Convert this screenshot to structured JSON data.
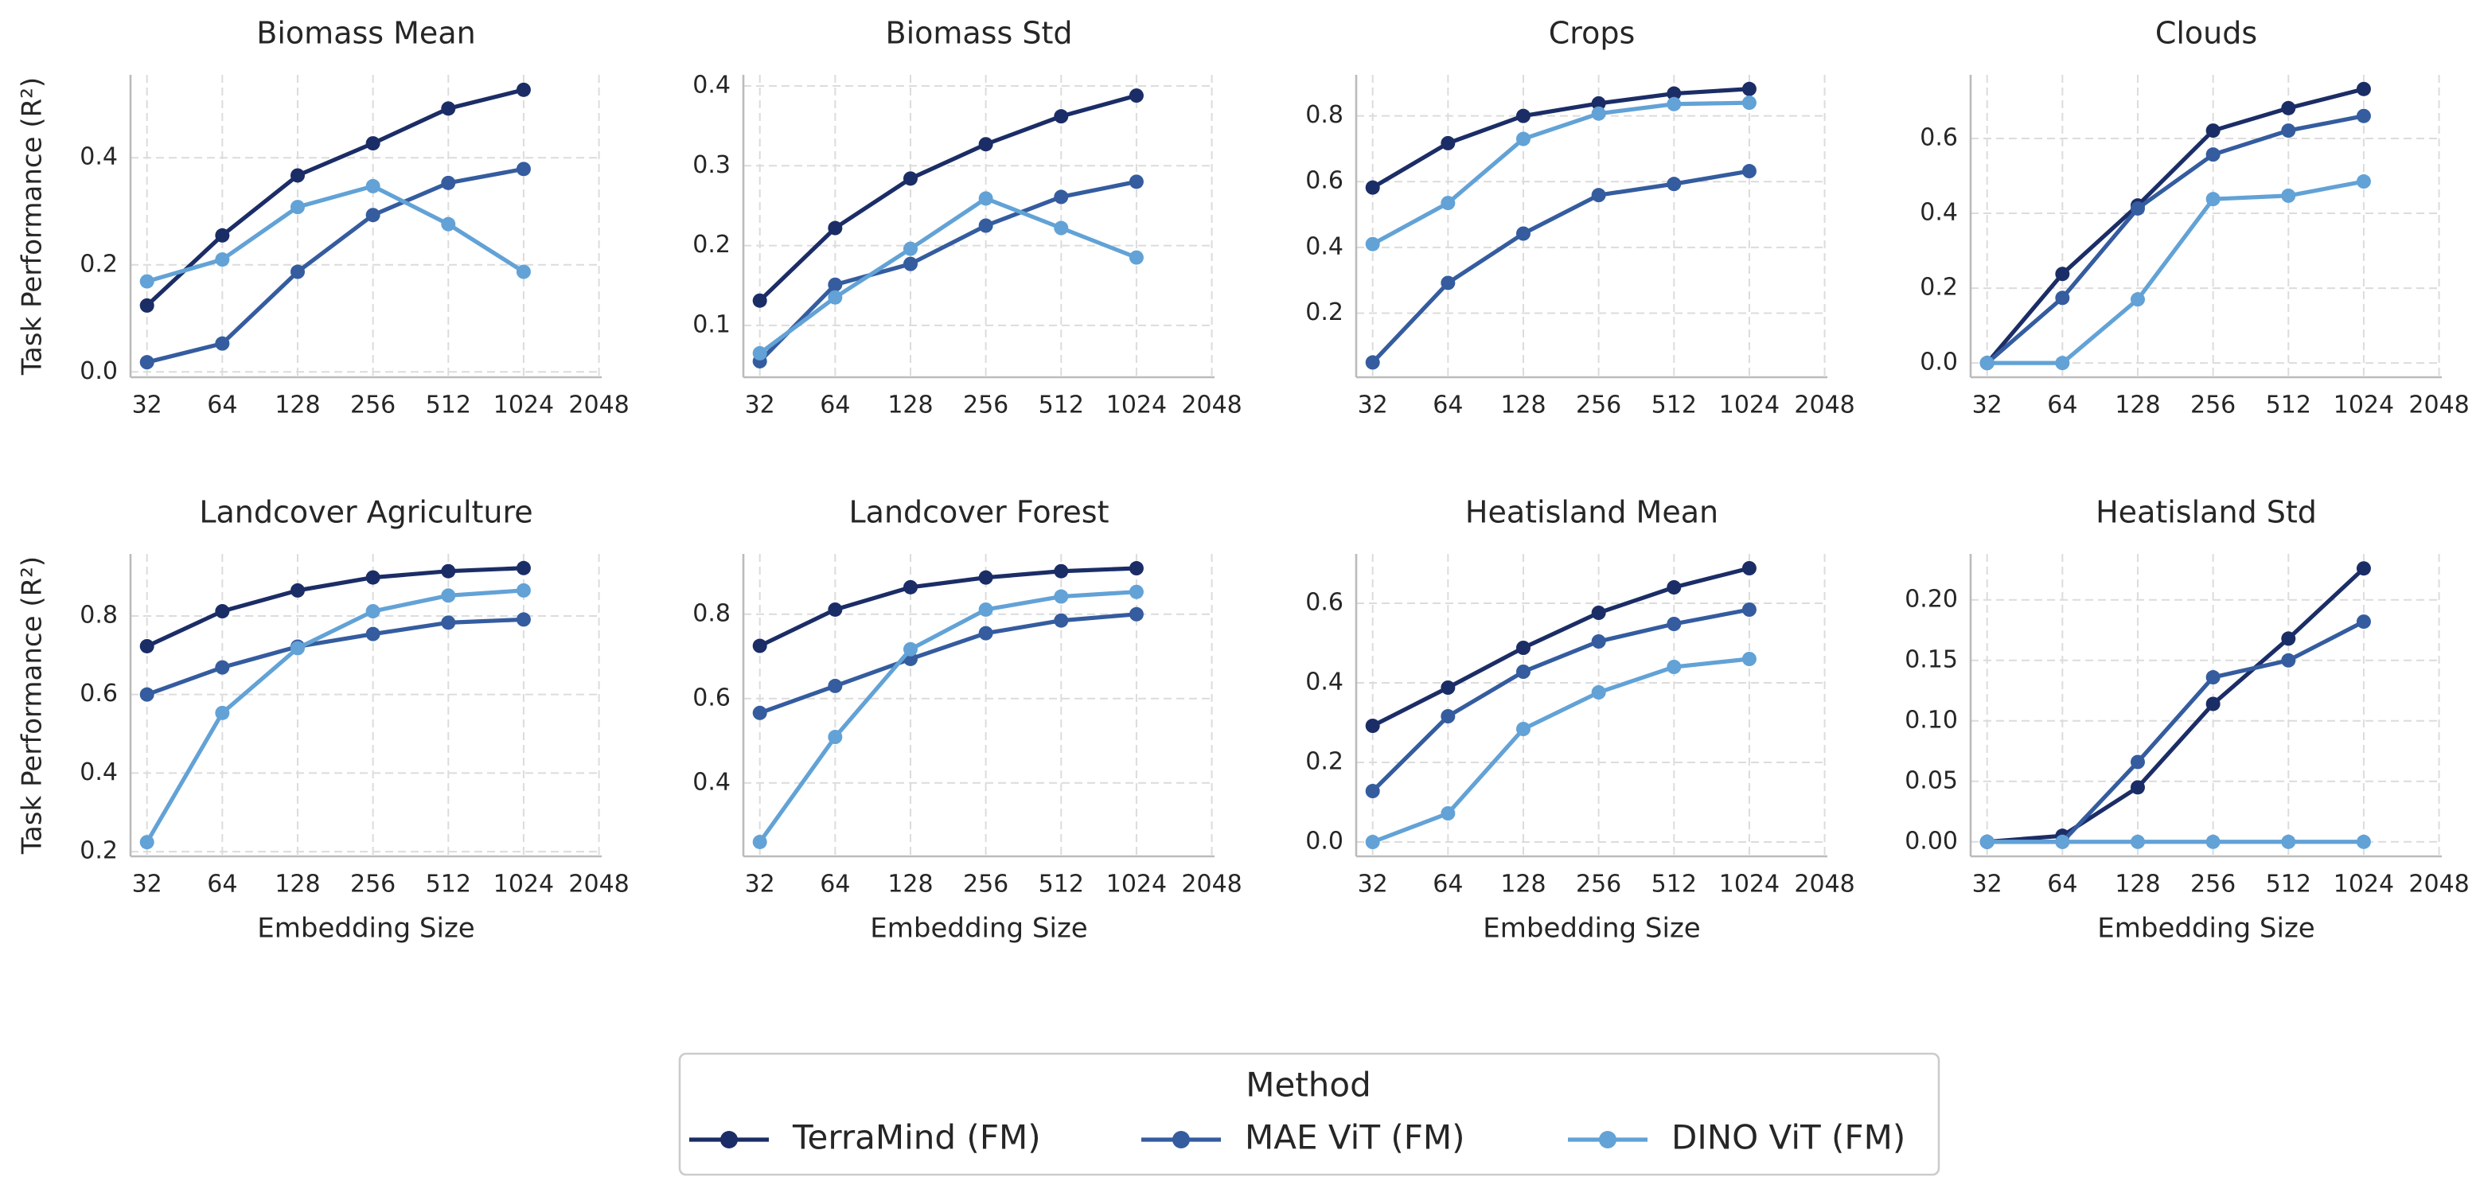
{
  "chart_data": [
    {
      "type": "line",
      "title": "Biomass Mean",
      "ylabel": "Task Performance (R²)",
      "x": [
        32,
        64,
        128,
        256,
        512,
        1024
      ],
      "xlim": [
        27.5,
        2100
      ],
      "xticks": [
        32,
        64,
        128,
        256,
        512,
        1024,
        2048
      ],
      "xscale": "log2",
      "ylim": [
        -0.01,
        0.555
      ],
      "yticks": [
        {
          "value": 0,
          "label": "0.0"
        },
        0.2,
        0.4
      ],
      "grid": true,
      "series": [
        {
          "name": "TerraMind (FM)",
          "color": "#1b2d66",
          "values": [
            0.124,
            0.255,
            0.367,
            0.427,
            0.492,
            0.527
          ]
        },
        {
          "name": "MAE ViT (FM)",
          "color": "#345c9f",
          "values": [
            0.018,
            0.053,
            0.187,
            0.293,
            0.353,
            0.379
          ]
        },
        {
          "name": "DINO ViT (FM)",
          "color": "#62a2d6",
          "values": [
            0.169,
            0.21,
            0.308,
            0.347,
            0.276,
            0.187
          ]
        }
      ]
    },
    {
      "type": "line",
      "title": "Biomass Std",
      "x": [
        32,
        64,
        128,
        256,
        512,
        1024
      ],
      "xlim": [
        27.5,
        2100
      ],
      "xticks": [
        32,
        64,
        128,
        256,
        512,
        1024,
        2048
      ],
      "xscale": "log2",
      "ylim": [
        0.035,
        0.414
      ],
      "yticks": [
        0.1,
        0.2,
        0.3,
        0.4
      ],
      "grid": true,
      "series": [
        {
          "name": "TerraMind (FM)",
          "color": "#1b2d66",
          "values": [
            0.131,
            0.222,
            0.284,
            0.327,
            0.362,
            0.388
          ]
        },
        {
          "name": "MAE ViT (FM)",
          "color": "#345c9f",
          "values": [
            0.055,
            0.151,
            0.177,
            0.225,
            0.261,
            0.28
          ]
        },
        {
          "name": "DINO ViT (FM)",
          "color": "#62a2d6",
          "values": [
            0.065,
            0.135,
            0.196,
            0.259,
            0.222,
            0.185
          ]
        }
      ]
    },
    {
      "type": "line",
      "title": "Crops",
      "x": [
        32,
        64,
        128,
        256,
        512,
        1024
      ],
      "xlim": [
        27.5,
        2100
      ],
      "xticks": [
        32,
        64,
        128,
        256,
        512,
        1024,
        2048
      ],
      "xscale": "log2",
      "ylim": [
        0.005,
        0.925
      ],
      "yticks": [
        0.2,
        0.4,
        0.6,
        0.8
      ],
      "grid": true,
      "series": [
        {
          "name": "TerraMind (FM)",
          "color": "#1b2d66",
          "values": [
            0.582,
            0.717,
            0.8,
            0.838,
            0.868,
            0.882
          ]
        },
        {
          "name": "MAE ViT (FM)",
          "color": "#345c9f",
          "values": [
            0.05,
            0.292,
            0.442,
            0.559,
            0.593,
            0.632
          ]
        },
        {
          "name": "DINO ViT (FM)",
          "color": "#62a2d6",
          "values": [
            0.41,
            0.535,
            0.73,
            0.807,
            0.836,
            0.84
          ]
        }
      ]
    },
    {
      "type": "line",
      "title": "Clouds",
      "x": [
        32,
        64,
        128,
        256,
        512,
        1024
      ],
      "xlim": [
        27.5,
        2100
      ],
      "xticks": [
        32,
        64,
        128,
        256,
        512,
        1024,
        2048
      ],
      "xscale": "log2",
      "ylim": [
        -0.038,
        0.77
      ],
      "yticks": [
        {
          "value": 0,
          "label": "0.0"
        },
        0.2,
        0.4,
        0.6
      ],
      "grid": true,
      "series": [
        {
          "name": "TerraMind (FM)",
          "color": "#1b2d66",
          "values": [
            0,
            0.238,
            0.421,
            0.621,
            0.681,
            0.732
          ]
        },
        {
          "name": "MAE ViT (FM)",
          "color": "#345c9f",
          "values": [
            0,
            0.174,
            0.413,
            0.557,
            0.621,
            0.66
          ]
        },
        {
          "name": "DINO ViT (FM)",
          "color": "#62a2d6",
          "values": [
            0,
            0,
            0.17,
            0.438,
            0.447,
            0.485
          ]
        }
      ]
    },
    {
      "type": "line",
      "title": "Landcover Agriculture",
      "ylabel": "Task Performance (R²)",
      "xlabel": "Embedding Size",
      "x": [
        32,
        64,
        128,
        256,
        512,
        1024
      ],
      "xlim": [
        27.5,
        2100
      ],
      "xticks": [
        32,
        64,
        128,
        256,
        512,
        1024,
        2048
      ],
      "xscale": "log2",
      "ylim": [
        0.188,
        0.958
      ],
      "yticks": [
        0.2,
        0.4,
        0.6,
        0.8
      ],
      "grid": true,
      "series": [
        {
          "name": "TerraMind (FM)",
          "color": "#1b2d66",
          "values": [
            0.723,
            0.812,
            0.865,
            0.898,
            0.914,
            0.922
          ]
        },
        {
          "name": "MAE ViT (FM)",
          "color": "#345c9f",
          "values": [
            0.6,
            0.669,
            0.722,
            0.754,
            0.783,
            0.791
          ]
        },
        {
          "name": "DINO ViT (FM)",
          "color": "#62a2d6",
          "values": [
            0.224,
            0.553,
            0.718,
            0.812,
            0.852,
            0.865
          ]
        }
      ]
    },
    {
      "type": "line",
      "title": "Landcover Forest",
      "xlabel": "Embedding Size",
      "x": [
        32,
        64,
        128,
        256,
        512,
        1024
      ],
      "xlim": [
        27.5,
        2100
      ],
      "xticks": [
        32,
        64,
        128,
        256,
        512,
        1024,
        2048
      ],
      "xscale": "log2",
      "ylim": [
        0.226,
        0.943
      ],
      "yticks": [
        0.4,
        0.6,
        0.8
      ],
      "grid": true,
      "series": [
        {
          "name": "TerraMind (FM)",
          "color": "#1b2d66",
          "values": [
            0.725,
            0.811,
            0.864,
            0.887,
            0.902,
            0.909
          ]
        },
        {
          "name": "MAE ViT (FM)",
          "color": "#345c9f",
          "values": [
            0.566,
            0.63,
            0.694,
            0.755,
            0.785,
            0.8
          ]
        },
        {
          "name": "DINO ViT (FM)",
          "color": "#62a2d6",
          "values": [
            0.26,
            0.509,
            0.717,
            0.811,
            0.842,
            0.853
          ]
        }
      ]
    },
    {
      "type": "line",
      "title": "Heatisland Mean",
      "xlabel": "Embedding Size",
      "x": [
        32,
        64,
        128,
        256,
        512,
        1024
      ],
      "xlim": [
        27.5,
        2100
      ],
      "xticks": [
        32,
        64,
        128,
        256,
        512,
        1024,
        2048
      ],
      "xscale": "log2",
      "ylim": [
        -0.036,
        0.724
      ],
      "yticks": [
        {
          "value": 0,
          "label": "0.0"
        },
        0.2,
        0.4,
        0.6
      ],
      "grid": true,
      "series": [
        {
          "name": "TerraMind (FM)",
          "color": "#1b2d66",
          "values": [
            0.292,
            0.388,
            0.488,
            0.576,
            0.64,
            0.688
          ]
        },
        {
          "name": "MAE ViT (FM)",
          "color": "#345c9f",
          "values": [
            0.128,
            0.316,
            0.428,
            0.504,
            0.548,
            0.584
          ]
        },
        {
          "name": "DINO ViT (FM)",
          "color": "#62a2d6",
          "values": [
            0,
            0.072,
            0.284,
            0.376,
            0.44,
            0.46
          ]
        }
      ]
    },
    {
      "type": "line",
      "title": "Heatisland Std",
      "xlabel": "Embedding Size",
      "x": [
        32,
        64,
        128,
        256,
        512,
        1024
      ],
      "xlim": [
        27.5,
        2100
      ],
      "xticks": [
        32,
        64,
        128,
        256,
        512,
        1024,
        2048
      ],
      "xscale": "log2",
      "ylim": [
        -0.012,
        0.238
      ],
      "yticks": [
        {
          "value": 0,
          "label": "0.00"
        },
        {
          "value": 0.05,
          "label": "0.05"
        },
        {
          "value": 0.1,
          "label": "0.10"
        },
        {
          "value": 0.15,
          "label": "0.15"
        },
        {
          "value": 0.2,
          "label": "0.20"
        }
      ],
      "grid": true,
      "series": [
        {
          "name": "TerraMind (FM)",
          "color": "#1b2d66",
          "values": [
            0,
            0.005,
            0.045,
            0.114,
            0.168,
            0.226
          ]
        },
        {
          "name": "MAE ViT (FM)",
          "color": "#345c9f",
          "values": [
            0,
            0,
            0.066,
            0.136,
            0.15,
            0.182
          ]
        },
        {
          "name": "DINO ViT (FM)",
          "color": "#62a2d6",
          "values": [
            0,
            0,
            0,
            0,
            0,
            0
          ]
        }
      ]
    }
  ],
  "legend": {
    "title": "Method",
    "loc": "lower center"
  }
}
